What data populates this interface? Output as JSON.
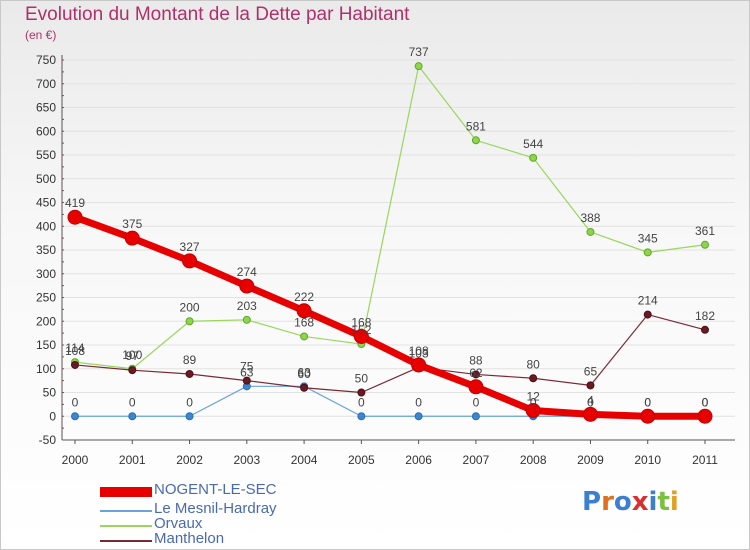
{
  "title": "Evolution du Montant de la Dette par Habitant",
  "unit": "(en €)",
  "logo_text": "Proxiti",
  "colors": {
    "title": "#b0306a",
    "axis_text": "#333333",
    "grid": "#e2e2e2",
    "legend_text": "#4a6ab0"
  },
  "chart_data": {
    "type": "line",
    "title": "Evolution du Montant de la Dette par Habitant",
    "ylabel": "(en €)",
    "xlabel": "",
    "x": [
      "2000",
      "2001",
      "2002",
      "2003",
      "2004",
      "2005",
      "2006",
      "2007",
      "2008",
      "2009",
      "2010",
      "2011"
    ],
    "ylim": [
      -50,
      750
    ],
    "yticks": [
      -50,
      0,
      50,
      100,
      150,
      200,
      250,
      300,
      350,
      400,
      450,
      500,
      550,
      600,
      650,
      700,
      750
    ],
    "grid": true,
    "legend_position": "bottom-left",
    "series": [
      {
        "name": "NOGENT-LE-SEC",
        "color": "#e60000",
        "values": [
          419,
          375,
          327,
          274,
          222,
          168,
          108,
          62,
          12,
          4,
          0,
          0
        ],
        "labels": [
          "419",
          "375",
          "327",
          "274",
          "222",
          "168",
          "108",
          "62",
          "12",
          "4",
          "0",
          "0"
        ]
      },
      {
        "name": "Le Mesnil-Hardray",
        "color": "#4f8fd0",
        "values": [
          0,
          0,
          0,
          63,
          63,
          0,
          0,
          0,
          0,
          0,
          0,
          0
        ],
        "labels": [
          "0",
          "0",
          "0",
          "63",
          "63",
          "0",
          "0",
          "0",
          "0",
          "0",
          "0",
          "0"
        ]
      },
      {
        "name": "Orvaux",
        "color": "#8fd44a",
        "values": [
          114,
          100,
          200,
          203,
          168,
          152,
          737,
          581,
          544,
          388,
          345,
          361
        ],
        "labels": [
          "114",
          "100",
          "200",
          "203",
          "168",
          "152",
          "737",
          "581",
          "544",
          "388",
          "345",
          "361"
        ]
      },
      {
        "name": "Manthelon",
        "color": "#7a1f2a",
        "values": [
          108,
          97,
          89,
          75,
          60,
          50,
          103,
          88,
          80,
          65,
          214,
          182
        ],
        "labels": [
          "108",
          "97",
          "89",
          "75",
          "60",
          "50",
          "103",
          "88",
          "80",
          "65",
          "214",
          "182"
        ]
      }
    ]
  }
}
